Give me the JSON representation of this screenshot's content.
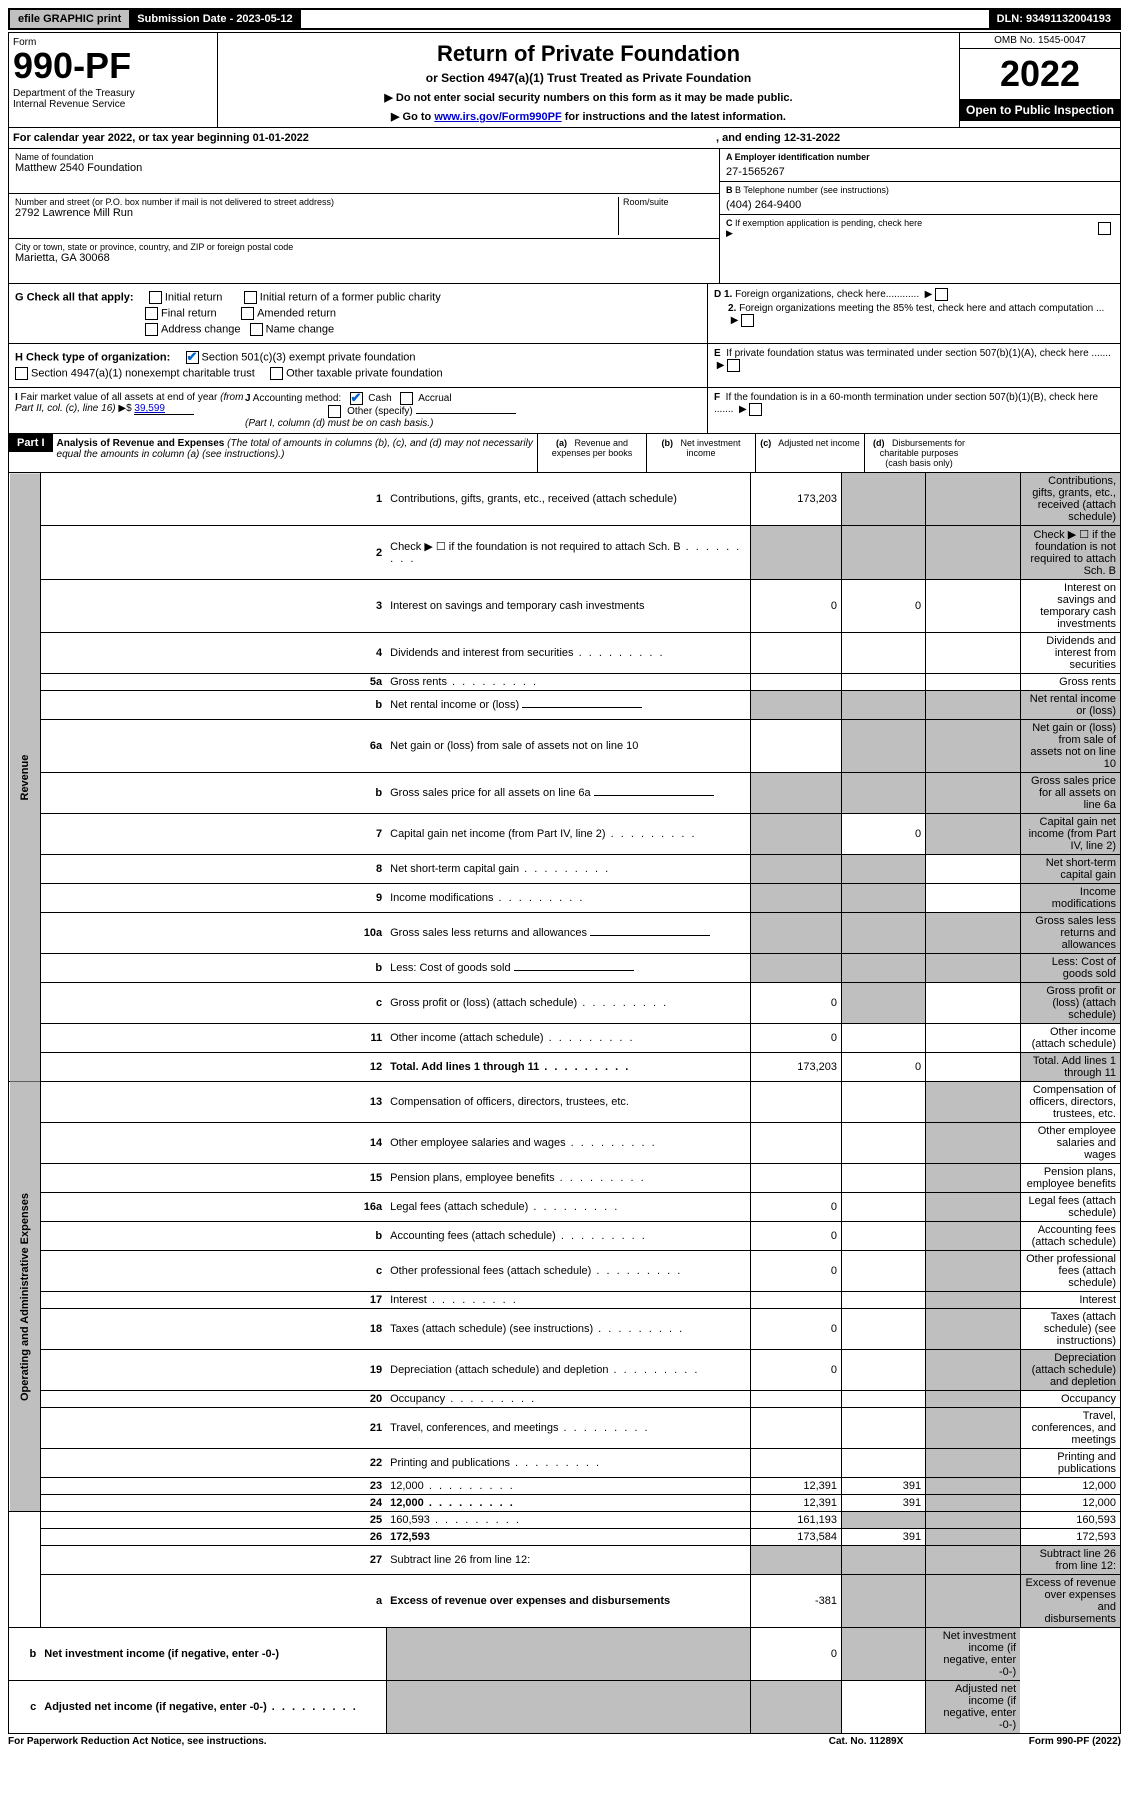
{
  "top": {
    "efile": "efile GRAPHIC print",
    "submission": "Submission Date - 2023-05-12",
    "dln": "DLN: 93491132004193"
  },
  "header": {
    "form_label": "Form",
    "form_number": "990-PF",
    "dept": "Department of the Treasury\nInternal Revenue Service",
    "title": "Return of Private Foundation",
    "subtitle": "or Section 4947(a)(1) Trust Treated as Private Foundation",
    "note1": "▶ Do not enter social security numbers on this form as it may be made public.",
    "note2_pre": "▶ Go to ",
    "note2_link": "www.irs.gov/Form990PF",
    "note2_post": " for instructions and the latest information.",
    "omb": "OMB No. 1545-0047",
    "year": "2022",
    "open_public": "Open to Public Inspection"
  },
  "calyear": {
    "text": "For calendar year 2022, or tax year beginning 01-01-2022",
    "ending": ", and ending 12-31-2022"
  },
  "entity": {
    "name_label": "Name of foundation",
    "name": "Matthew 2540 Foundation",
    "addr_label": "Number and street (or P.O. box number if mail is not delivered to street address)",
    "addr": "2792 Lawrence Mill Run",
    "room_label": "Room/suite",
    "city_label": "City or town, state or province, country, and ZIP or foreign postal code",
    "city": "Marietta, GA  30068",
    "ein_label": "A Employer identification number",
    "ein": "27-1565267",
    "tel_label": "B Telephone number (see instructions)",
    "tel": "(404) 264-9400",
    "c_label": "C If exemption application is pending, check here"
  },
  "checks": {
    "g_label": "G Check all that apply:",
    "g1": "Initial return",
    "g2": "Initial return of a former public charity",
    "g3": "Final return",
    "g4": "Amended return",
    "g5": "Address change",
    "g6": "Name change",
    "h_label": "H Check type of organization:",
    "h1": "Section 501(c)(3) exempt private foundation",
    "h2": "Section 4947(a)(1) nonexempt charitable trust",
    "h3": "Other taxable private foundation",
    "d1": "D 1. Foreign organizations, check here............",
    "d2": "2. Foreign organizations meeting the 85% test, check here and attach computation ...",
    "e": "E  If private foundation status was terminated under section 507(b)(1)(A), check here .......",
    "i_label": "I Fair market value of all assets at end of year (from Part II, col. (c), line 16)",
    "i_value": "39,599",
    "j_label": "J Accounting method:",
    "j1": "Cash",
    "j2": "Accrual",
    "j3": "Other (specify)",
    "j_note": "(Part I, column (d) must be on cash basis.)",
    "f": "F  If the foundation is in a 60-month termination under section 507(b)(1)(B), check here ......."
  },
  "part1": {
    "label": "Part I",
    "title": "Analysis of Revenue and Expenses",
    "desc": "(The total of amounts in columns (b), (c), and (d) may not necessarily equal the amounts in column (a) (see instructions).)",
    "col_a": "(a)   Revenue and expenses per books",
    "col_b": "(b)   Net investment income",
    "col_c": "(c)   Adjusted net income",
    "col_d": "(d)   Disbursements for charitable purposes (cash basis only)"
  },
  "vlabels": {
    "revenue": "Revenue",
    "expenses": "Operating and Administrative Expenses"
  },
  "rows": [
    {
      "n": "1",
      "d": "Contributions, gifts, grants, etc., received (attach schedule)",
      "a": "173,203",
      "shb": true,
      "shc": true,
      "shd": true
    },
    {
      "n": "2",
      "d": "Check ▶ ☐ if the foundation is not required to attach Sch. B",
      "sha": true,
      "shb": true,
      "shc": true,
      "shd": true,
      "dots": true
    },
    {
      "n": "3",
      "d": "Interest on savings and temporary cash investments",
      "a": "0",
      "b": "0"
    },
    {
      "n": "4",
      "d": "Dividends and interest from securities",
      "dots": true
    },
    {
      "n": "5a",
      "d": "Gross rents",
      "dots": true
    },
    {
      "n": "b",
      "d": "Net rental income or (loss)",
      "sha": true,
      "shb": true,
      "shc": true,
      "shd": true,
      "input": true
    },
    {
      "n": "6a",
      "d": "Net gain or (loss) from sale of assets not on line 10",
      "shb": true,
      "shc": true,
      "shd": true
    },
    {
      "n": "b",
      "d": "Gross sales price for all assets on line 6a",
      "sha": true,
      "shb": true,
      "shc": true,
      "shd": true,
      "input": true
    },
    {
      "n": "7",
      "d": "Capital gain net income (from Part IV, line 2)",
      "sha": true,
      "b": "0",
      "shc": true,
      "shd": true,
      "dots": true
    },
    {
      "n": "8",
      "d": "Net short-term capital gain",
      "sha": true,
      "shb": true,
      "shd": true,
      "dots": true
    },
    {
      "n": "9",
      "d": "Income modifications",
      "sha": true,
      "shb": true,
      "shd": true,
      "dots": true
    },
    {
      "n": "10a",
      "d": "Gross sales less returns and allowances",
      "sha": true,
      "shb": true,
      "shc": true,
      "shd": true,
      "input": true
    },
    {
      "n": "b",
      "d": "Less: Cost of goods sold",
      "sha": true,
      "shb": true,
      "shc": true,
      "shd": true,
      "dots": true,
      "input": true
    },
    {
      "n": "c",
      "d": "Gross profit or (loss) (attach schedule)",
      "a": "0",
      "shb": true,
      "shd": true,
      "dots": true
    },
    {
      "n": "11",
      "d": "Other income (attach schedule)",
      "a": "0",
      "dots": true
    },
    {
      "n": "12",
      "d": "Total. Add lines 1 through 11",
      "a": "173,203",
      "b": "0",
      "shd": true,
      "bold": true,
      "dots": true
    },
    {
      "n": "13",
      "d": "Compensation of officers, directors, trustees, etc.",
      "shc": true
    },
    {
      "n": "14",
      "d": "Other employee salaries and wages",
      "shc": true,
      "dots": true
    },
    {
      "n": "15",
      "d": "Pension plans, employee benefits",
      "shc": true,
      "dots": true
    },
    {
      "n": "16a",
      "d": "Legal fees (attach schedule)",
      "a": "0",
      "shc": true,
      "dots": true
    },
    {
      "n": "b",
      "d": "Accounting fees (attach schedule)",
      "a": "0",
      "shc": true,
      "dots": true
    },
    {
      "n": "c",
      "d": "Other professional fees (attach schedule)",
      "a": "0",
      "shc": true,
      "dots": true
    },
    {
      "n": "17",
      "d": "Interest",
      "shc": true,
      "dots": true
    },
    {
      "n": "18",
      "d": "Taxes (attach schedule) (see instructions)",
      "a": "0",
      "shc": true,
      "dots": true
    },
    {
      "n": "19",
      "d": "Depreciation (attach schedule) and depletion",
      "a": "0",
      "shc": true,
      "shd": true,
      "dots": true
    },
    {
      "n": "20",
      "d": "Occupancy",
      "shc": true,
      "dots": true
    },
    {
      "n": "21",
      "d": "Travel, conferences, and meetings",
      "shc": true,
      "dots": true
    },
    {
      "n": "22",
      "d": "Printing and publications",
      "shc": true,
      "dots": true
    },
    {
      "n": "23",
      "d": "12,000",
      "a": "12,391",
      "b": "391",
      "shc": true,
      "dots": true
    },
    {
      "n": "24",
      "d": "12,000",
      "a": "12,391",
      "b": "391",
      "shc": true,
      "bold": true,
      "dots": true
    },
    {
      "n": "25",
      "d": "160,593",
      "a": "161,193",
      "shb": true,
      "shc": true,
      "dots": true
    },
    {
      "n": "26",
      "d": "172,593",
      "a": "173,584",
      "b": "391",
      "shc": true,
      "bold": true
    },
    {
      "n": "27",
      "d": "Subtract line 26 from line 12:",
      "sha": true,
      "shb": true,
      "shc": true,
      "shd": true
    },
    {
      "n": "a",
      "d": "Excess of revenue over expenses and disbursements",
      "a": "-381",
      "shb": true,
      "shc": true,
      "shd": true,
      "bold": true
    },
    {
      "n": "b",
      "d": "Net investment income (if negative, enter -0-)",
      "sha": true,
      "b": "0",
      "shc": true,
      "shd": true,
      "bold": true
    },
    {
      "n": "c",
      "d": "Adjusted net income (if negative, enter -0-)",
      "sha": true,
      "shb": true,
      "shd": true,
      "bold": true,
      "dots": true
    }
  ],
  "footer": {
    "left": "For Paperwork Reduction Act Notice, see instructions.",
    "mid": "Cat. No. 11289X",
    "right": "Form 990-PF (2022)"
  }
}
